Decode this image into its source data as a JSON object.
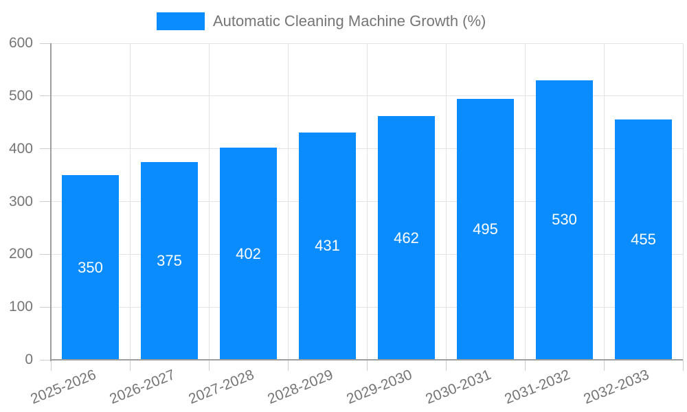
{
  "legend": {
    "label": "Automatic Cleaning Machine Growth (%)"
  },
  "chart_data": {
    "type": "bar",
    "title": "Automatic Cleaning Machine Growth (%)",
    "series_name": "Automatic Cleaning Machine Growth (%)",
    "categories": [
      "2025-2026",
      "2026-2027",
      "2027-2028",
      "2028-2029",
      "2029-2030",
      "2030-2031",
      "2031-2032",
      "2032-2033"
    ],
    "values": [
      350,
      375,
      402,
      431,
      462,
      495,
      530,
      455
    ],
    "xlabel": "",
    "ylabel": "",
    "ylim": [
      0,
      600
    ],
    "y_ticks": [
      0,
      100,
      200,
      300,
      400,
      500,
      600
    ],
    "grid": true,
    "legend_position": "top-center",
    "value_label_position": "inside-middle",
    "x_label_rotation_deg": -22,
    "colors": {
      "bar": "#0a8cff",
      "bar_value_label": "#ffffff",
      "axis_line": "#9e9e9e",
      "tick": "#cccccc",
      "gridline": "#e3e3e3",
      "axis_label": "#757575",
      "legend_text": "#757575",
      "background": "#ffffff"
    }
  }
}
